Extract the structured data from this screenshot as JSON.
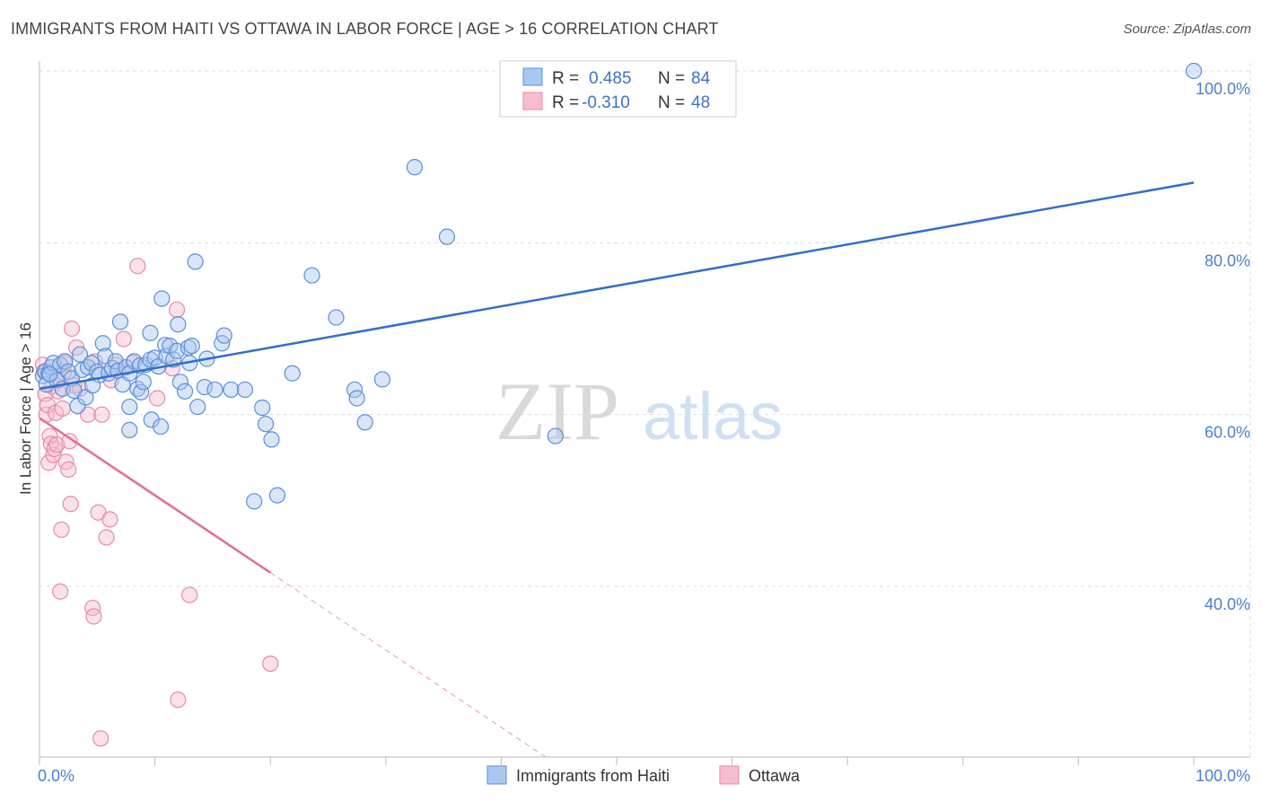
{
  "title": "IMMIGRANTS FROM HAITI VS OTTAWA IN LABOR FORCE | AGE > 16 CORRELATION CHART",
  "source": "Source: ZipAtlas.com",
  "watermark": {
    "zip": "ZIP",
    "atlas": "atlas"
  },
  "colors": {
    "blue_fill": "#a9c8f0",
    "blue_stroke": "#5b8ed8",
    "blue_line": "#2f6fcb",
    "pink_fill": "#f7bcd0",
    "pink_stroke": "#e68aa8",
    "pink_line": "#e06d97",
    "tick": "#4a7fd0",
    "grid": "#dddddd"
  },
  "legend": {
    "r_label": "R =",
    "n_label": "N =",
    "entries": [
      {
        "r": "0.485",
        "n": "84"
      },
      {
        "r": "-0.310",
        "n": "48"
      }
    ]
  },
  "bottom_legend": [
    "Immigrants from Haiti",
    "Ottawa"
  ],
  "chart_data": {
    "type": "scatter",
    "xlabel": "",
    "ylabel": "In Labor Force | Age > 16",
    "x_tick_labels": [
      "0.0%",
      "100.0%"
    ],
    "y_tick_labels": [
      "40.0%",
      "60.0%",
      "80.0%",
      "100.0%"
    ],
    "y_ticks": [
      40,
      60,
      80,
      100
    ],
    "xlim": [
      0,
      100
    ],
    "ylim": [
      20,
      102
    ],
    "grid": true,
    "legend_position": "top-center",
    "series": [
      {
        "name": "Immigrants from Haiti",
        "trend": {
          "x": [
            0,
            100
          ],
          "y": [
            63.0,
            87.0
          ],
          "style": "solid"
        },
        "points": [
          [
            0.3,
            64.5
          ],
          [
            0.5,
            65
          ],
          [
            0.6,
            63.5
          ],
          [
            0.8,
            64.8
          ],
          [
            1.0,
            65.5
          ],
          [
            1.2,
            66.0
          ],
          [
            1.5,
            64.0
          ],
          [
            1.8,
            65.8
          ],
          [
            2.0,
            63.0
          ],
          [
            2.2,
            66.2
          ],
          [
            2.5,
            65.0
          ],
          [
            2.8,
            64.2
          ],
          [
            3.0,
            62.8
          ],
          [
            3.3,
            61.0
          ],
          [
            3.5,
            67.0
          ],
          [
            3.7,
            65.2
          ],
          [
            4.0,
            62.0
          ],
          [
            4.2,
            65.5
          ],
          [
            4.5,
            66.0
          ],
          [
            5.0,
            65.0
          ],
          [
            5.2,
            64.6
          ],
          [
            5.5,
            68.3
          ],
          [
            5.7,
            66.8
          ],
          [
            6.0,
            64.8
          ],
          [
            6.3,
            65.4
          ],
          [
            6.6,
            66.2
          ],
          [
            6.8,
            65.1
          ],
          [
            7.0,
            70.8
          ],
          [
            7.2,
            63.5
          ],
          [
            7.5,
            65.5
          ],
          [
            7.8,
            64.8
          ],
          [
            7.8,
            60.9
          ],
          [
            7.8,
            58.2
          ],
          [
            8.2,
            66.2
          ],
          [
            8.5,
            63.0
          ],
          [
            8.7,
            65.7
          ],
          [
            8.8,
            62.6
          ],
          [
            9.0,
            63.8
          ],
          [
            9.2,
            65.8
          ],
          [
            9.6,
            66.4
          ],
          [
            9.6,
            69.5
          ],
          [
            9.7,
            59.4
          ],
          [
            10.0,
            66.6
          ],
          [
            10.3,
            65.6
          ],
          [
            10.5,
            58.6
          ],
          [
            10.6,
            73.5
          ],
          [
            10.9,
            68.1
          ],
          [
            11.0,
            66.8
          ],
          [
            11.3,
            68.0
          ],
          [
            11.6,
            66.4
          ],
          [
            11.9,
            67.4
          ],
          [
            12.0,
            70.5
          ],
          [
            12.2,
            63.8
          ],
          [
            12.6,
            62.7
          ],
          [
            12.9,
            67.8
          ],
          [
            13.0,
            66.0
          ],
          [
            13.2,
            68.0
          ],
          [
            13.5,
            77.8
          ],
          [
            13.7,
            60.9
          ],
          [
            14.3,
            63.2
          ],
          [
            14.5,
            66.5
          ],
          [
            15.2,
            62.9
          ],
          [
            15.8,
            68.3
          ],
          [
            16.0,
            69.2
          ],
          [
            16.6,
            62.9
          ],
          [
            17.8,
            62.9
          ],
          [
            18.6,
            49.9
          ],
          [
            19.3,
            60.8
          ],
          [
            19.6,
            58.9
          ],
          [
            20.1,
            57.1
          ],
          [
            20.6,
            50.6
          ],
          [
            21.9,
            64.8
          ],
          [
            23.6,
            76.2
          ],
          [
            25.7,
            71.3
          ],
          [
            27.3,
            62.9
          ],
          [
            27.5,
            61.9
          ],
          [
            28.2,
            59.1
          ],
          [
            29.7,
            64.1
          ],
          [
            32.5,
            88.8
          ],
          [
            35.3,
            80.7
          ],
          [
            44.7,
            57.5
          ],
          [
            100.0,
            100.0
          ],
          [
            0.9,
            64.7
          ],
          [
            4.6,
            63.4
          ]
        ]
      },
      {
        "name": "Ottawa",
        "trend": {
          "x": [
            0,
            20
          ],
          "y": [
            59.6,
            41.6
          ],
          "x_dashed_end": 44,
          "style": "solid_then_dashed"
        },
        "points": [
          [
            0.3,
            65.8
          ],
          [
            0.5,
            62.4
          ],
          [
            0.6,
            60.0
          ],
          [
            0.7,
            61.1
          ],
          [
            0.8,
            54.4
          ],
          [
            0.9,
            57.5
          ],
          [
            1.0,
            56.6
          ],
          [
            1.1,
            63.3
          ],
          [
            1.2,
            55.3
          ],
          [
            1.3,
            56.0
          ],
          [
            1.4,
            60.2
          ],
          [
            1.5,
            56.5
          ],
          [
            1.6,
            62.7
          ],
          [
            1.7,
            64.0
          ],
          [
            1.8,
            39.4
          ],
          [
            1.9,
            46.6
          ],
          [
            2.0,
            60.7
          ],
          [
            2.1,
            64.9
          ],
          [
            2.3,
            54.5
          ],
          [
            2.5,
            53.6
          ],
          [
            2.6,
            56.9
          ],
          [
            2.7,
            49.6
          ],
          [
            2.8,
            70.0
          ],
          [
            3.0,
            63.4
          ],
          [
            3.2,
            67.8
          ],
          [
            3.5,
            63.0
          ],
          [
            4.2,
            60.0
          ],
          [
            4.6,
            37.5
          ],
          [
            4.7,
            36.5
          ],
          [
            4.8,
            66.2
          ],
          [
            5.1,
            48.6
          ],
          [
            5.3,
            22.3
          ],
          [
            5.4,
            60.0
          ],
          [
            5.8,
            45.7
          ],
          [
            6.1,
            47.8
          ],
          [
            6.6,
            65.8
          ],
          [
            7.3,
            68.8
          ],
          [
            8.1,
            66.0
          ],
          [
            8.5,
            77.3
          ],
          [
            10.2,
            61.9
          ],
          [
            11.5,
            65.4
          ],
          [
            11.9,
            72.2
          ],
          [
            12.0,
            26.8
          ],
          [
            13.0,
            39.0
          ],
          [
            20.0,
            31.0
          ],
          [
            0.4,
            65.0
          ],
          [
            2.2,
            66.0
          ],
          [
            6.2,
            64.0
          ]
        ]
      }
    ]
  }
}
